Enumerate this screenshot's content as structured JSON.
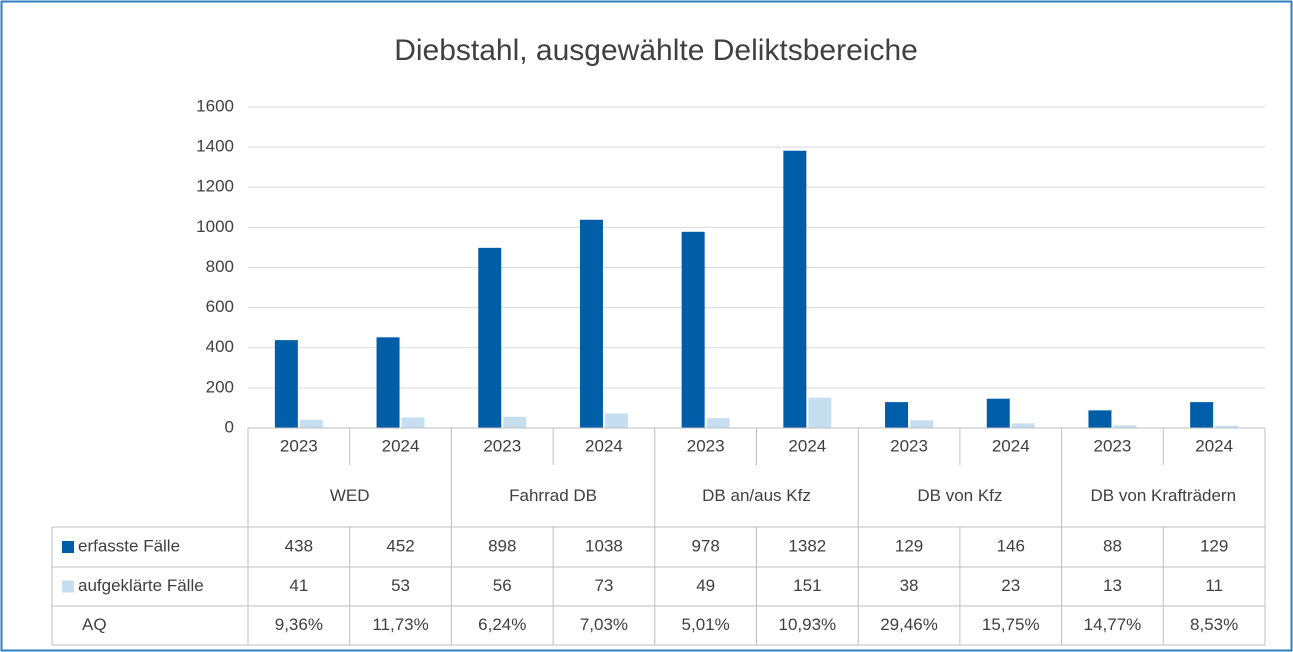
{
  "chart_data": {
    "type": "bar",
    "title": "Diebstahl, ausgewählte Deliktsbereiche",
    "categories": [
      "2023",
      "2024",
      "2023",
      "2024",
      "2023",
      "2024",
      "2023",
      "2024",
      "2023",
      "2024"
    ],
    "groups": [
      "WED",
      "Fahrrad DB",
      "DB an/aus Kfz",
      "DB von Kfz",
      "DB von Krafträdern"
    ],
    "series": [
      {
        "name": "erfasste Fälle",
        "color": "#005ea8",
        "values": [
          438,
          452,
          898,
          1038,
          978,
          1382,
          129,
          146,
          88,
          129
        ]
      },
      {
        "name": "aufgeklärte Fälle",
        "color": "#c5dff0",
        "values": [
          41,
          53,
          56,
          73,
          49,
          151,
          38,
          23,
          13,
          11
        ]
      }
    ],
    "table_rows": [
      {
        "name": "AQ",
        "values": [
          9.36,
          11.73,
          6.24,
          7.03,
          5.01,
          10.93,
          29.46,
          15.75,
          14.77,
          8.53
        ],
        "value_labels": [
          "9,36%",
          "11,73%",
          "6,24%",
          "7,03%",
          "5,01%",
          "10,93%",
          "29,46%",
          "15,75%",
          "14,77%",
          "8,53%"
        ]
      }
    ],
    "ylim": [
      0,
      1600
    ],
    "yticks": [
      0,
      200,
      400,
      600,
      800,
      1000,
      1200,
      1400,
      1600
    ],
    "grid": true
  }
}
